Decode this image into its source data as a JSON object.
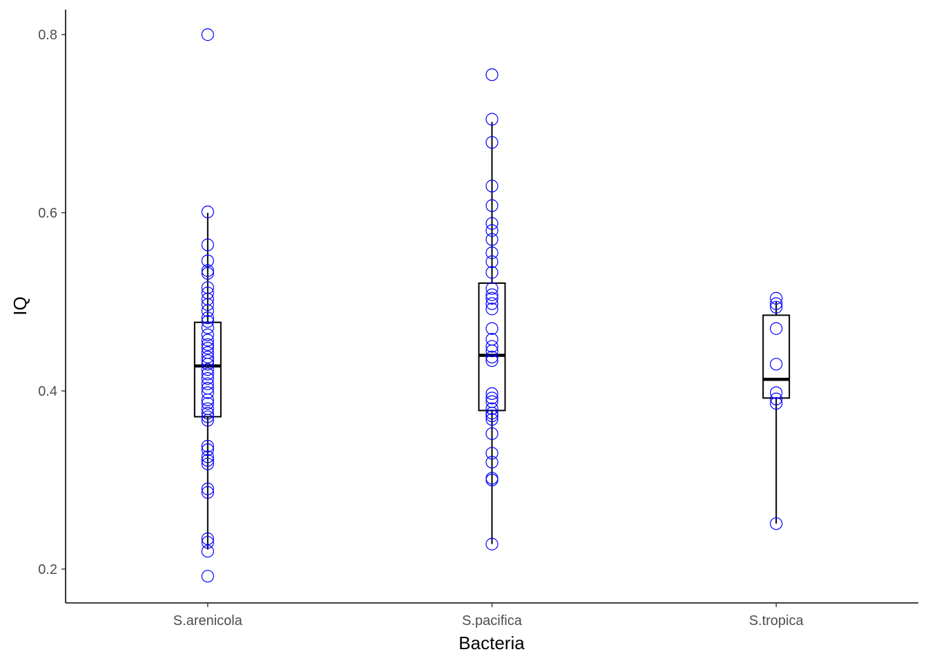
{
  "chart_data": {
    "type": "box",
    "title": "",
    "xlabel": "Bacteria",
    "ylabel": "IQ",
    "ylim": [
      0.162,
      0.828
    ],
    "yticks": [
      0.2,
      0.4,
      0.6,
      0.8
    ],
    "ytick_labels": [
      "0.2",
      "0.4",
      "0.6",
      "0.8"
    ],
    "categories": [
      "S.arenicola",
      "S.pacifica",
      "S.tropica"
    ],
    "point_color": "#0000ff",
    "boxes": [
      {
        "category": "S.arenicola",
        "q1": 0.371,
        "median": 0.428,
        "q3": 0.477,
        "whisker_low": 0.222,
        "whisker_high": 0.6
      },
      {
        "category": "S.pacifica",
        "q1": 0.378,
        "median": 0.44,
        "q3": 0.521,
        "whisker_low": 0.228,
        "whisker_high": 0.702
      },
      {
        "category": "S.tropica",
        "q1": 0.392,
        "median": 0.413,
        "q3": 0.485,
        "whisker_low": 0.251,
        "whisker_high": 0.5
      }
    ],
    "points": [
      {
        "category": "S.arenicola",
        "values": [
          0.8,
          0.601,
          0.564,
          0.546,
          0.535,
          0.532,
          0.516,
          0.51,
          0.503,
          0.497,
          0.49,
          0.482,
          0.478,
          0.471,
          0.463,
          0.457,
          0.452,
          0.448,
          0.443,
          0.438,
          0.434,
          0.43,
          0.424,
          0.419,
          0.414,
          0.408,
          0.403,
          0.398,
          0.39,
          0.386,
          0.38,
          0.375,
          0.371,
          0.367,
          0.338,
          0.334,
          0.326,
          0.322,
          0.318,
          0.29,
          0.286,
          0.234,
          0.23,
          0.22,
          0.192
        ]
      },
      {
        "category": "S.pacifica",
        "values": [
          0.755,
          0.705,
          0.679,
          0.63,
          0.608,
          0.588,
          0.58,
          0.57,
          0.555,
          0.545,
          0.533,
          0.515,
          0.508,
          0.504,
          0.498,
          0.492,
          0.47,
          0.458,
          0.45,
          0.445,
          0.438,
          0.434,
          0.397,
          0.392,
          0.388,
          0.38,
          0.375,
          0.372,
          0.368,
          0.352,
          0.33,
          0.32,
          0.302,
          0.3,
          0.228
        ]
      },
      {
        "category": "S.tropica",
        "values": [
          0.504,
          0.498,
          0.494,
          0.47,
          0.43,
          0.398,
          0.391,
          0.386,
          0.251
        ]
      }
    ]
  }
}
